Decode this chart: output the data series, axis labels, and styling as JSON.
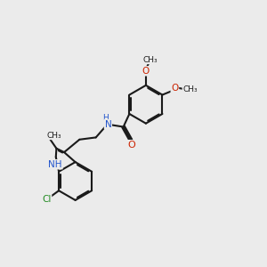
{
  "bg_color": "#ebebeb",
  "bond_color": "#1a1a1a",
  "bond_lw": 1.5,
  "dbo": 0.05,
  "atom_colors": {
    "N": "#2255cc",
    "O": "#cc2200",
    "Cl": "#228B22",
    "C": "#1a1a1a"
  },
  "fs": 7.5,
  "fs_small": 6.5,
  "xlim": [
    0,
    10
  ],
  "ylim": [
    0,
    10
  ]
}
